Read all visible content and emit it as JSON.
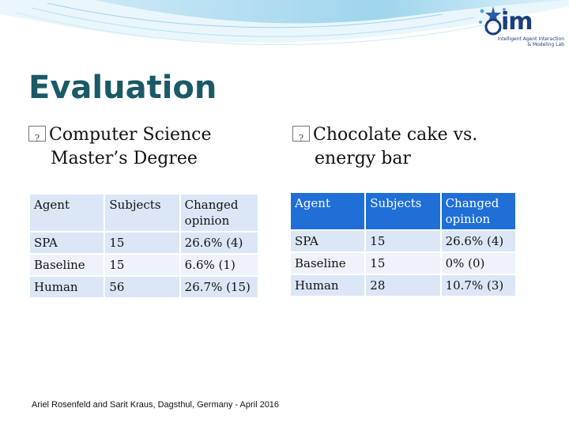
{
  "slide": {
    "title": "Evaluation",
    "left_bullet": {
      "line1": "Computer Science",
      "line2": "Master’s Degree"
    },
    "right_bullet": {
      "line1": "Chocolate cake vs.",
      "line2": "energy bar"
    },
    "footer": "Ariel Rosenfeld and Sarit Kraus, Dagsthul, Germany - April 2016"
  },
  "logo": {
    "word": "im",
    "sub_line1": "Intelligent Agent Interaction",
    "sub_line2": "& Modeling Lab"
  },
  "tables": {
    "left": {
      "headers": [
        "Agent",
        "Subjects",
        "Changed opinion"
      ],
      "rows": [
        [
          "SPA",
          "15",
          "26.6% (4)"
        ],
        [
          "Baseline",
          "15",
          "6.6% (1)"
        ],
        [
          "Human",
          "56",
          "26.7% (15)"
        ]
      ]
    },
    "right": {
      "headers": [
        "Agent",
        "Subjects",
        "Changed opinion"
      ],
      "rows": [
        [
          "SPA",
          "15",
          "26.6% (4)"
        ],
        [
          "Baseline",
          "15",
          "0% (0)"
        ],
        [
          "Human",
          "28",
          "10.7% (3)"
        ]
      ]
    }
  },
  "colors": {
    "title": "#1a5a66",
    "header_blue": "#1f6fd6",
    "row_light": "#dbe7f6",
    "row_lighter": "#eef3fb"
  }
}
